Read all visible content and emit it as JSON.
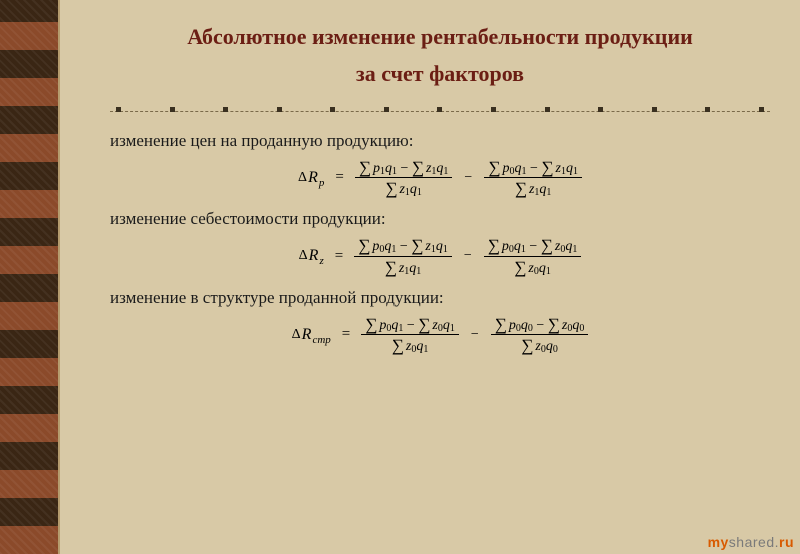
{
  "title_line1": "Абсолютное изменение рентабельности продукции",
  "title_line2": "за счет факторов",
  "text1": "изменение цен на проданную продукцию:",
  "text2": "изменение себестоимости продукции:",
  "text3": "изменение в структуре проданной продукции:",
  "formulas": {
    "f1": {
      "lhs_sub": "p",
      "left": {
        "num_a": "p₁q₁",
        "num_b": "z₁q₁",
        "den": "z₁q₁"
      },
      "right": {
        "num_a": "p₀q₁",
        "num_b": "z₁q₁",
        "den": "z₁q₁"
      }
    },
    "f2": {
      "lhs_sub": "z",
      "left": {
        "num_a": "p₀q₁",
        "num_b": "z₁q₁",
        "den": "z₁q₁"
      },
      "right": {
        "num_a": "p₀q₁",
        "num_b": "z₀q₁",
        "den": "z₀q₁"
      }
    },
    "f3": {
      "lhs_sub": "стр",
      "left": {
        "num_a": "p₀q₁",
        "num_b": "z₀q₁",
        "den": "z₀q₁"
      },
      "right": {
        "num_a": "p₀q₀",
        "num_b": "z₀q₀",
        "den": "z₀q₀"
      }
    }
  },
  "watermark": {
    "a": "my",
    "b": "shared",
    "c": ".",
    "d": "ru"
  },
  "colors": {
    "background": "#d8c9a6",
    "title": "#6b1e14",
    "text": "#1a1a1a",
    "divider": "#7a6a4a",
    "sidebar_a": "#8b4a2a",
    "sidebar_b": "#3a2614"
  },
  "divider_dot_count": 13
}
